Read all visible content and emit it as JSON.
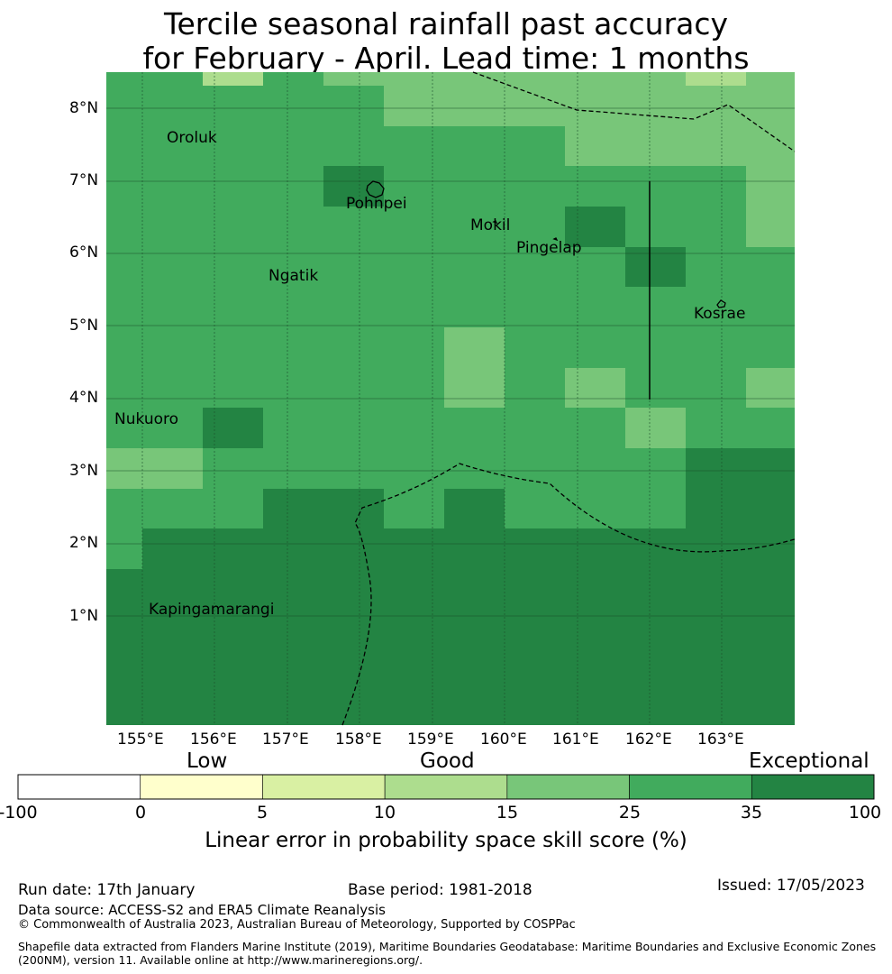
{
  "title": {
    "line1": "Tercile seasonal rainfall past accuracy",
    "line2": "for February - April. Lead time: 1 months"
  },
  "map": {
    "lon_range": [
      154.5,
      164.0
    ],
    "lat_range": [
      -0.3,
      8.5
    ],
    "lon_ticks": [
      "155°E",
      "156°E",
      "157°E",
      "158°E",
      "159°E",
      "160°E",
      "161°E",
      "162°E",
      "163°E"
    ],
    "lat_ticks": [
      "1°N",
      "2°N",
      "3°N",
      "4°N",
      "5°N",
      "6°N",
      "7°N",
      "8°N"
    ],
    "places": [
      {
        "name": "Oroluk"
      },
      {
        "name": "Pohnpei"
      },
      {
        "name": "Mokil"
      },
      {
        "name": "Pingelap"
      },
      {
        "name": "Ngatik"
      },
      {
        "name": "Kosrae"
      },
      {
        "name": "Nukuoro"
      },
      {
        "name": "Kapingamarangi"
      }
    ]
  },
  "colorbar": {
    "categories": [
      "Low",
      "Good",
      "Exceptional"
    ],
    "ticks": [
      "-100",
      "0",
      "5",
      "10",
      "15",
      "25",
      "35",
      "100"
    ],
    "colors": [
      "#ffffff",
      "#ffffcc",
      "#d9f0a3",
      "#addd8e",
      "#78c679",
      "#41ab5d",
      "#238443"
    ],
    "label": "Linear error in probability space skill score (%)"
  },
  "footer": {
    "run_date": "Run date: 17th January",
    "base_period": "Base period: 1981-2018",
    "issued": "Issued: 17/05/2023",
    "data_source": "Data source: ACCESS-S2 and ERA5 Climate Reanalysis",
    "copyright": "© Commonwealth of Australia 2023, Australian Bureau of Meteorology, Supported by COSPPac",
    "shapefile1": "Shapefile data extracted from Flanders Marine Institute (2019), Maritime Boundaries Geodatabase: Maritime Boundaries and Exclusive Economic Zones",
    "shapefile2": "(200NM), version 11. Available online at http://www.marineregions.org/."
  }
}
